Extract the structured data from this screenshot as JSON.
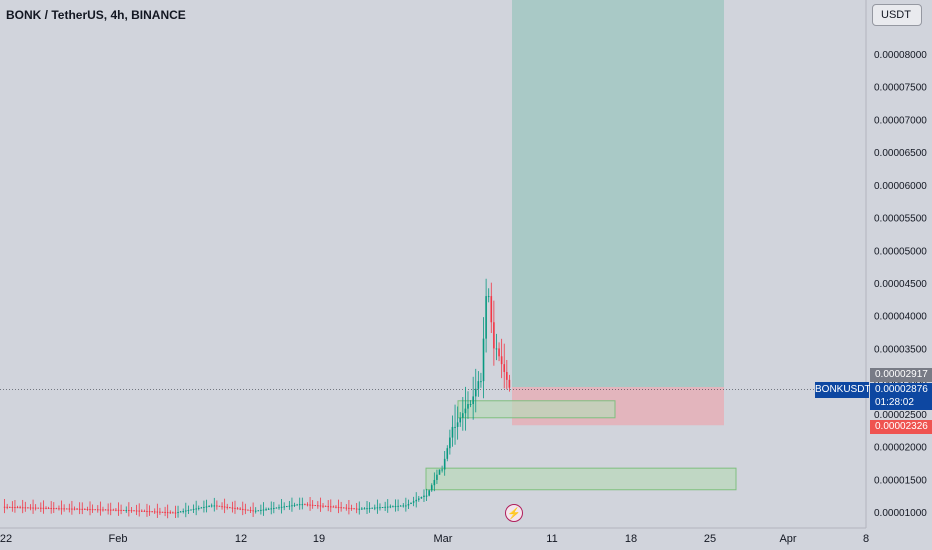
{
  "header": {
    "title": "BONK / TetherUS, 4h, BINANCE",
    "currency": "USDT"
  },
  "chart_data": {
    "type": "candlestick",
    "symbol": "BONKUSDT",
    "y_ticks": [
      "0.00008000",
      "0.00007500",
      "0.00007000",
      "0.00006500",
      "0.00006000",
      "0.00005500",
      "0.00005000",
      "0.00004500",
      "0.00004000",
      "0.00003500",
      "0.00003000",
      "0.00002500",
      "0.00002000",
      "0.00001500",
      "0.00001000"
    ],
    "x_ticks": [
      "22",
      "Feb",
      "12",
      "19",
      "Mar",
      "11",
      "18",
      "25",
      "Apr",
      "8"
    ],
    "current_price": "0.00002876",
    "countdown": "01:28:02",
    "upper_price_label": "0.00002917",
    "stop_price_label": "0.00002326",
    "position": {
      "entry": 2.91e-05,
      "target": 8.35e-05,
      "stop": 2.326e-05
    },
    "zones": [
      {
        "name": "upper-demand-zone",
        "from": 2.44e-05,
        "to": 2.7e-05
      },
      {
        "name": "lower-demand-zone",
        "from": 1.34e-05,
        "to": 1.67e-05
      }
    ],
    "colors": {
      "up": "#089981",
      "down": "#f23645",
      "target": "#a9c9c6",
      "stop": "#e3b5bd",
      "zone": "#b9d9b9"
    }
  },
  "icons": {
    "flash": "lightning-icon"
  }
}
